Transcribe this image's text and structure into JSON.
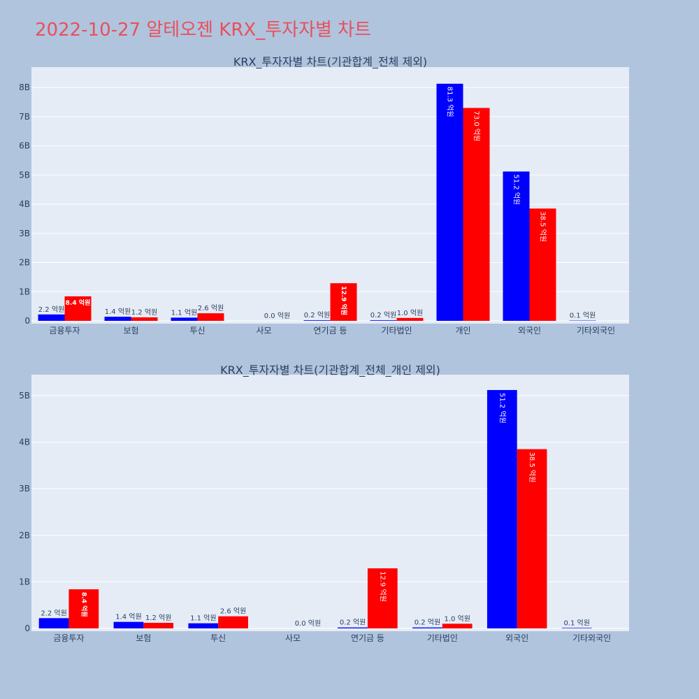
{
  "page_title": "2022-10-27 알테오젠 KRX_투자자별 차트",
  "chart_data": [
    {
      "type": "bar",
      "title": "KRX_투자자별 차트(기관합계_전체 제외)",
      "categories": [
        "금융투자",
        "보험",
        "투신",
        "사모",
        "연기금 등",
        "기타법인",
        "개인",
        "외국인",
        "기타외국인"
      ],
      "ylim": [
        0,
        8.7
      ],
      "yticks": [
        0,
        1,
        2,
        3,
        4,
        5,
        6,
        7,
        8
      ],
      "ytick_labels": [
        "0",
        "1B",
        "2B",
        "3B",
        "4B",
        "5B",
        "6B",
        "7B",
        "8B"
      ],
      "grid": true,
      "series": [
        {
          "color": "#0000ff",
          "values": [
            0.22,
            0.14,
            0.11,
            0.0,
            0.02,
            0.02,
            8.13,
            5.12,
            0.01
          ],
          "labels": [
            "2.2 억원",
            "1.4 억원",
            "1.1 억원",
            "",
            "0.2 억원",
            "0.2 억원",
            "81.3 억원",
            "51.2 억원",
            "0.1 억원"
          ]
        },
        {
          "color": "#ff0000",
          "values": [
            0.84,
            0.12,
            0.26,
            0.0,
            1.29,
            0.1,
            7.3,
            3.85,
            0.0
          ],
          "labels": [
            "8.4 억원",
            "1.2 억원",
            "2.6 억원",
            "0.0 억원",
            "12.9 억원",
            "1.0 억원",
            "73.0 억원",
            "38.5 억원",
            ""
          ]
        }
      ]
    },
    {
      "type": "bar",
      "title": "KRX_투자자별 차트(기관합계_전체_개인 제외)",
      "categories": [
        "금융투자",
        "보험",
        "투신",
        "사모",
        "연기금 등",
        "기타법인",
        "외국인",
        "기타외국인"
      ],
      "ylim": [
        0,
        5.45
      ],
      "yticks": [
        0,
        1,
        2,
        3,
        4,
        5
      ],
      "ytick_labels": [
        "0",
        "1B",
        "2B",
        "3B",
        "4B",
        "5B"
      ],
      "grid": true,
      "series": [
        {
          "color": "#0000ff",
          "values": [
            0.22,
            0.14,
            0.11,
            0.0,
            0.02,
            0.02,
            5.12,
            0.01
          ],
          "labels": [
            "2.2 억원",
            "1.4 억원",
            "1.1 억원",
            "",
            "0.2 억원",
            "0.2 억원",
            "51.2 억원",
            "0.1 억원"
          ]
        },
        {
          "color": "#ff0000",
          "values": [
            0.84,
            0.12,
            0.26,
            0.0,
            1.29,
            0.1,
            3.85,
            0.0
          ],
          "labels": [
            "8.4 억원",
            "1.2 억원",
            "2.6 억원",
            "0.0 억원",
            "12.9 억원",
            "1.0 억원",
            "38.5 억원",
            ""
          ]
        }
      ]
    }
  ]
}
